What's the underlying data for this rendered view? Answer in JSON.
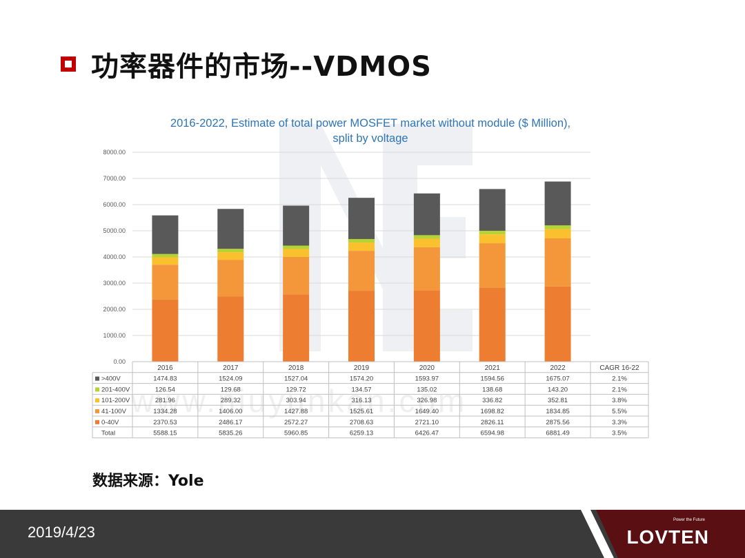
{
  "slide": {
    "title": "功率器件的市场--VDMOS",
    "source": "数据来源：Yole",
    "date": "2019/4/23",
    "logo": "LOVTEN",
    "logo_tagline": "Power the Future",
    "watermark": "www.niuyunkan.com"
  },
  "chart_data": {
    "type": "bar",
    "stacked": true,
    "title_lines": [
      "2016-2022, Estimate of total power MOSFET market without module ($ Million),",
      "split by voltage"
    ],
    "categories": [
      "2016",
      "2017",
      "2018",
      "2019",
      "2020",
      "2021",
      "2022"
    ],
    "series": [
      {
        "name": "0-40V",
        "color": "#ed7d31",
        "values": [
          2370.53,
          2486.17,
          2572.27,
          2708.63,
          2721.1,
          2826.11,
          2875.56
        ],
        "labels": [
          "2370.53",
          "2486.17",
          "2572.27",
          "2708.63",
          "2721.10",
          "2826.11",
          "2875.56"
        ],
        "cagr": "3.3%"
      },
      {
        "name": "41-100V",
        "color": "#f4963a",
        "values": [
          1334.28,
          1406.0,
          1427.88,
          1525.61,
          1649.4,
          1698.82,
          1834.85
        ],
        "labels": [
          "1334.28",
          "1406.00",
          "1427.88",
          "1525.61",
          "1649.40",
          "1698.82",
          "1834.85"
        ],
        "cagr": "5.5%"
      },
      {
        "name": "101-200V",
        "color": "#fbc02d",
        "values": [
          281.96,
          289.32,
          303.94,
          316.13,
          326.98,
          336.82,
          352.81
        ],
        "labels": [
          "281.96",
          "289.32",
          "303.94",
          "316.13",
          "326.98",
          "336.82",
          "352.81"
        ],
        "cagr": "3.8%"
      },
      {
        "name": "201-400V",
        "color": "#b5d334",
        "values": [
          126.54,
          129.68,
          129.72,
          134.57,
          135.02,
          138.68,
          143.2
        ],
        "labels": [
          "126.54",
          "129.68",
          "129.72",
          "134.57",
          "135.02",
          "138.68",
          "143.20"
        ],
        "cagr": "2.1%"
      },
      {
        "name": ">400V",
        "color": "#595959",
        "values": [
          1474.83,
          1524.09,
          1527.04,
          1574.2,
          1593.97,
          1594.56,
          1675.07
        ],
        "labels": [
          "1474.83",
          "1524.09",
          "1527.04",
          "1574.20",
          "1593.97",
          "1594.56",
          "1675.07"
        ],
        "cagr": "2.1%"
      }
    ],
    "total": {
      "name": "Total",
      "labels": [
        "5588.15",
        "5835.26",
        "5960.85",
        "6259.13",
        "6426.47",
        "6594.98",
        "6881.49"
      ],
      "cagr": "3.5%"
    },
    "cagr_header": "CAGR 16-22",
    "table_row_order": [
      ">400V",
      "201-400V",
      "101-200V",
      "41-100V",
      "0-40V"
    ],
    "ylim": [
      0,
      8000
    ],
    "yticks": [
      "0.00",
      "1000.00",
      "2000.00",
      "3000.00",
      "4000.00",
      "5000.00",
      "6000.00",
      "7000.00",
      "8000.00"
    ],
    "grid": true,
    "legend": "table",
    "colors": {
      "title": "#2e75b6",
      "grid": "#d9d9d9",
      "table_border": "#bfbfbf"
    }
  }
}
